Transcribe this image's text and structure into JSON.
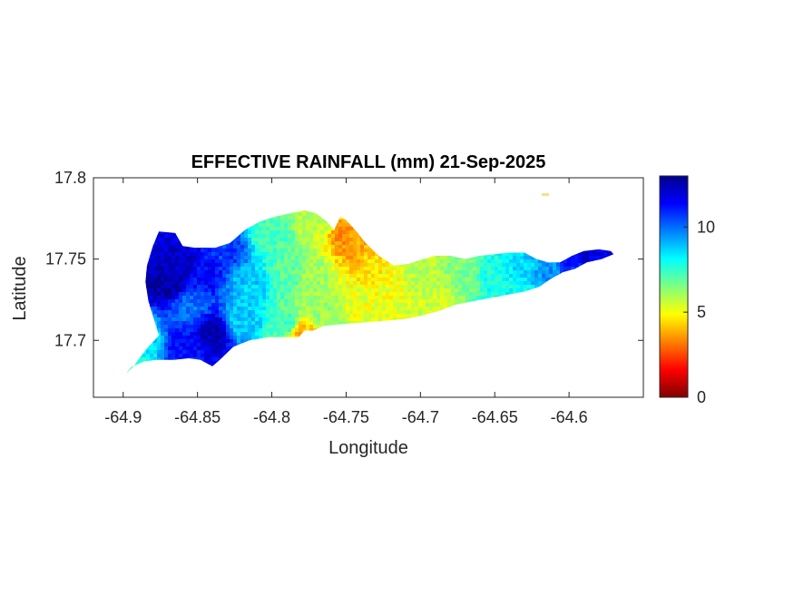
{
  "chart_data": {
    "type": "heatmap",
    "title": "EFFECTIVE RAINFALL (mm) 21-Sep-2025",
    "xlabel": "Longitude",
    "ylabel": "Latitude",
    "xlim": [
      -64.92,
      -64.55
    ],
    "ylim": [
      17.665,
      17.8
    ],
    "x_ticks": [
      -64.9,
      -64.85,
      -64.8,
      -64.75,
      -64.7,
      -64.65,
      -64.6
    ],
    "x_tick_labels": [
      "-64.9",
      "-64.85",
      "-64.8",
      "-64.75",
      "-64.7",
      "-64.65",
      "-64.6"
    ],
    "y_ticks": [
      17.7,
      17.75,
      17.8
    ],
    "y_tick_labels": [
      "17.7",
      "17.75",
      "17.8"
    ],
    "colorbar": {
      "colormap": "jet",
      "clim": [
        0,
        13
      ],
      "ticks": [
        0,
        5,
        10
      ],
      "tick_labels": [
        "0",
        "5",
        "10"
      ]
    },
    "island_outline_lonlat": [
      [
        -64.9,
        17.678
      ],
      [
        -64.893,
        17.684
      ],
      [
        -64.885,
        17.694
      ],
      [
        -64.876,
        17.703
      ],
      [
        -64.879,
        17.712
      ],
      [
        -64.883,
        17.724
      ],
      [
        -64.885,
        17.736
      ],
      [
        -64.884,
        17.746
      ],
      [
        -64.88,
        17.758
      ],
      [
        -64.876,
        17.767
      ],
      [
        -64.865,
        17.766
      ],
      [
        -64.86,
        17.758
      ],
      [
        -64.852,
        17.757
      ],
      [
        -64.845,
        17.757
      ],
      [
        -64.838,
        17.757
      ],
      [
        -64.828,
        17.76
      ],
      [
        -64.818,
        17.768
      ],
      [
        -64.808,
        17.773
      ],
      [
        -64.798,
        17.776
      ],
      [
        -64.788,
        17.778
      ],
      [
        -64.778,
        17.78
      ],
      [
        -64.77,
        17.778
      ],
      [
        -64.763,
        17.773
      ],
      [
        -64.758,
        17.768
      ],
      [
        -64.754,
        17.776
      ],
      [
        -64.75,
        17.774
      ],
      [
        -64.744,
        17.768
      ],
      [
        -64.737,
        17.76
      ],
      [
        -64.728,
        17.752
      ],
      [
        -64.718,
        17.746
      ],
      [
        -64.708,
        17.747
      ],
      [
        -64.698,
        17.75
      ],
      [
        -64.69,
        17.752
      ],
      [
        -64.68,
        17.752
      ],
      [
        -64.67,
        17.75
      ],
      [
        -64.66,
        17.752
      ],
      [
        -64.65,
        17.753
      ],
      [
        -64.64,
        17.754
      ],
      [
        -64.63,
        17.754
      ],
      [
        -64.622,
        17.75
      ],
      [
        -64.614,
        17.748
      ],
      [
        -64.606,
        17.748
      ],
      [
        -64.598,
        17.752
      ],
      [
        -64.59,
        17.755
      ],
      [
        -64.58,
        17.756
      ],
      [
        -64.572,
        17.755
      ],
      [
        -64.57,
        17.753
      ],
      [
        -64.578,
        17.75
      ],
      [
        -64.588,
        17.748
      ],
      [
        -64.596,
        17.744
      ],
      [
        -64.604,
        17.742
      ],
      [
        -64.612,
        17.738
      ],
      [
        -64.62,
        17.733
      ],
      [
        -64.63,
        17.73
      ],
      [
        -64.642,
        17.728
      ],
      [
        -64.654,
        17.726
      ],
      [
        -64.665,
        17.724
      ],
      [
        -64.676,
        17.722
      ],
      [
        -64.688,
        17.718
      ],
      [
        -64.7,
        17.715
      ],
      [
        -64.712,
        17.713
      ],
      [
        -64.725,
        17.712
      ],
      [
        -64.738,
        17.711
      ],
      [
        -64.752,
        17.71
      ],
      [
        -64.765,
        17.709
      ],
      [
        -64.772,
        17.706
      ],
      [
        -64.778,
        17.706
      ],
      [
        -64.782,
        17.702
      ],
      [
        -64.79,
        17.702
      ],
      [
        -64.802,
        17.702
      ],
      [
        -64.815,
        17.7
      ],
      [
        -64.826,
        17.696
      ],
      [
        -64.835,
        17.688
      ],
      [
        -64.84,
        17.684
      ],
      [
        -64.848,
        17.688
      ],
      [
        -64.856,
        17.689
      ],
      [
        -64.866,
        17.688
      ],
      [
        -64.878,
        17.688
      ],
      [
        -64.886,
        17.687
      ],
      [
        -64.894,
        17.684
      ],
      [
        -64.9,
        17.678
      ]
    ],
    "rainfall_anchor_points_mm": [
      {
        "lon": -64.87,
        "lat": 17.735,
        "value": 12.5
      },
      {
        "lon": -64.86,
        "lat": 17.748,
        "value": 12.0
      },
      {
        "lon": -64.845,
        "lat": 17.742,
        "value": 11.3
      },
      {
        "lon": -64.84,
        "lat": 17.705,
        "value": 12.3
      },
      {
        "lon": -64.86,
        "lat": 17.697,
        "value": 11.2
      },
      {
        "lon": -64.83,
        "lat": 17.755,
        "value": 10.6
      },
      {
        "lon": -64.855,
        "lat": 17.72,
        "value": 10.0
      },
      {
        "lon": -64.885,
        "lat": 17.7,
        "value": 8.5
      },
      {
        "lon": -64.895,
        "lat": 17.683,
        "value": 7.5
      },
      {
        "lon": -64.815,
        "lat": 17.735,
        "value": 8.8
      },
      {
        "lon": -64.82,
        "lat": 17.712,
        "value": 8.8
      },
      {
        "lon": -64.8,
        "lat": 17.765,
        "value": 7.2
      },
      {
        "lon": -64.79,
        "lat": 17.74,
        "value": 7.0
      },
      {
        "lon": -64.79,
        "lat": 17.71,
        "value": 7.3
      },
      {
        "lon": -64.772,
        "lat": 17.772,
        "value": 5.8
      },
      {
        "lon": -64.77,
        "lat": 17.738,
        "value": 6.0
      },
      {
        "lon": -64.765,
        "lat": 17.715,
        "value": 6.2
      },
      {
        "lon": -64.75,
        "lat": 17.763,
        "value": 3.5
      },
      {
        "lon": -64.742,
        "lat": 17.755,
        "value": 3.8
      },
      {
        "lon": -64.735,
        "lat": 17.745,
        "value": 4.6
      },
      {
        "lon": -64.74,
        "lat": 17.722,
        "value": 5.2
      },
      {
        "lon": -64.72,
        "lat": 17.735,
        "value": 5.0
      },
      {
        "lon": -64.7,
        "lat": 17.74,
        "value": 5.8
      },
      {
        "lon": -64.69,
        "lat": 17.725,
        "value": 5.5
      },
      {
        "lon": -64.67,
        "lat": 17.742,
        "value": 6.5
      },
      {
        "lon": -64.65,
        "lat": 17.74,
        "value": 7.8
      },
      {
        "lon": -64.64,
        "lat": 17.73,
        "value": 8.0
      },
      {
        "lon": -64.63,
        "lat": 17.745,
        "value": 8.6
      },
      {
        "lon": -64.615,
        "lat": 17.745,
        "value": 9.5
      },
      {
        "lon": -64.6,
        "lat": 17.75,
        "value": 11.0
      },
      {
        "lon": -64.585,
        "lat": 17.753,
        "value": 11.8
      },
      {
        "lon": -64.78,
        "lat": 17.705,
        "value": 4.0
      }
    ]
  }
}
